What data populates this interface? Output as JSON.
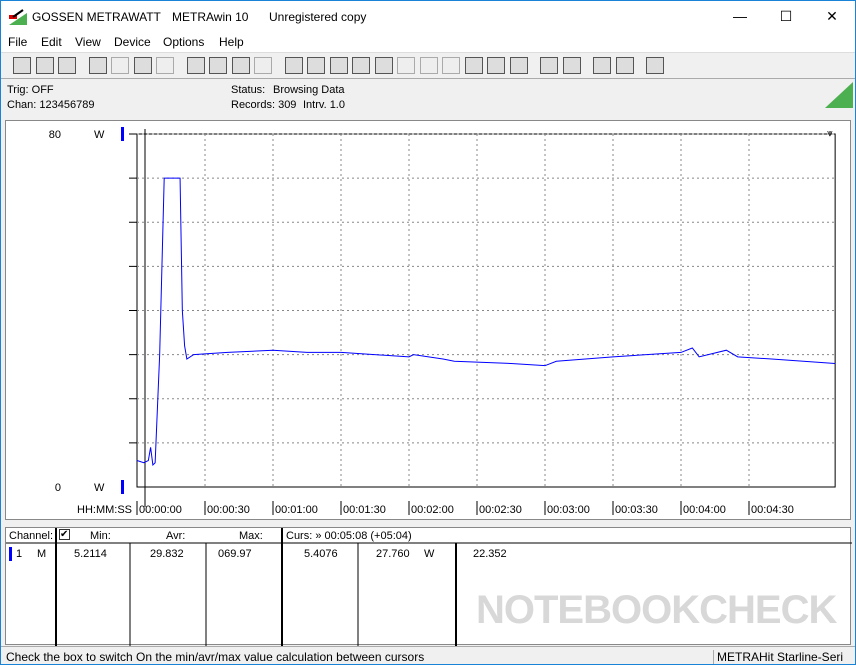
{
  "window": {
    "brand": "GOSSEN METRAWATT",
    "app": "METRAwin 10",
    "license": "Unregistered copy",
    "minimize": "—",
    "maximize": "☐",
    "close": "✕"
  },
  "menu": [
    "File",
    "Edit",
    "View",
    "Device",
    "Options",
    "Help"
  ],
  "toolbar": [
    "save-icon",
    "save-as-icon",
    "open-icon",
    "read-device-icon",
    "read-device-disabled-icon",
    "read-memory-icon",
    "display-icon",
    "line-chart-icon",
    "crosshair-icon",
    "table-icon",
    "histogram-icon",
    "export-icon",
    "import-icon",
    "list-icon",
    "monitor-icon",
    "function-icon",
    "device-icon",
    "signal-icon",
    "wave-icon",
    "wave2-icon",
    "settings-icon",
    "timer-icon",
    "print-icon",
    "print-preview-icon",
    "zoom-wave-icon",
    "zoom-icon",
    "comment-icon"
  ],
  "info": {
    "trig": "Trig: OFF",
    "chan": "Chan:  123456789",
    "status_label": "Status:",
    "status": "Browsing Data",
    "records": "Records: 309",
    "interval": "Intrv. 1.0"
  },
  "chart_data": {
    "type": "line",
    "ylim": [
      0,
      80
    ],
    "ytick_labels": [
      "80",
      "0"
    ],
    "yunit": "W",
    "xlabel": "HH:MM:SS",
    "xticks": [
      "00:00:00",
      "00:00:30",
      "00:01:00",
      "00:01:30",
      "00:02:00",
      "00:02:30",
      "00:03:00",
      "00:03:30",
      "00:04:00",
      "00:04:30"
    ],
    "xlim": [
      "00:00:00",
      "00:05:08"
    ],
    "grid": true,
    "color": "#0000ff",
    "x": [
      "00:00:00",
      "00:00:03",
      "00:00:05",
      "00:00:06",
      "00:00:07",
      "00:00:08",
      "00:00:10",
      "00:00:12",
      "00:00:19",
      "00:00:20",
      "00:00:21",
      "00:00:22",
      "00:00:25",
      "00:00:40",
      "00:01:00",
      "00:01:15",
      "00:01:30",
      "00:02:00",
      "00:02:02",
      "00:02:15",
      "00:02:20",
      "00:02:45",
      "00:03:00",
      "00:03:05",
      "00:03:30",
      "00:04:00",
      "00:04:05",
      "00:04:08",
      "00:04:20",
      "00:04:25",
      "00:04:40",
      "00:05:08"
    ],
    "y": [
      6,
      5.5,
      6,
      9,
      5,
      5.5,
      30,
      70,
      70,
      40,
      32,
      29,
      30,
      30.5,
      31,
      30.5,
      30.5,
      29.5,
      30,
      29,
      28.5,
      28,
      27.5,
      28.5,
      29.5,
      30.5,
      31.5,
      29.5,
      31,
      29.5,
      29,
      28
    ]
  },
  "stats": {
    "channel_label": "Channel:",
    "min_label": "Min:",
    "avr_label": "Avr:",
    "max_label": "Max:",
    "cursor": "Curs: » 00:05:08 (+05:04)",
    "row": {
      "num": "1",
      "mode": "M",
      "min": "5.2114",
      "avr": "29.832",
      "max": "069.97",
      "cur": "5.4076",
      "val": "27.760",
      "unit": "W",
      "extra": "22.352"
    }
  },
  "statusbar": {
    "hint": "Check the box to switch On the min/avr/max value calculation between cursors",
    "device": "METRAHit Starline-Seri"
  },
  "watermark": "NOTEBOOKCHECK"
}
